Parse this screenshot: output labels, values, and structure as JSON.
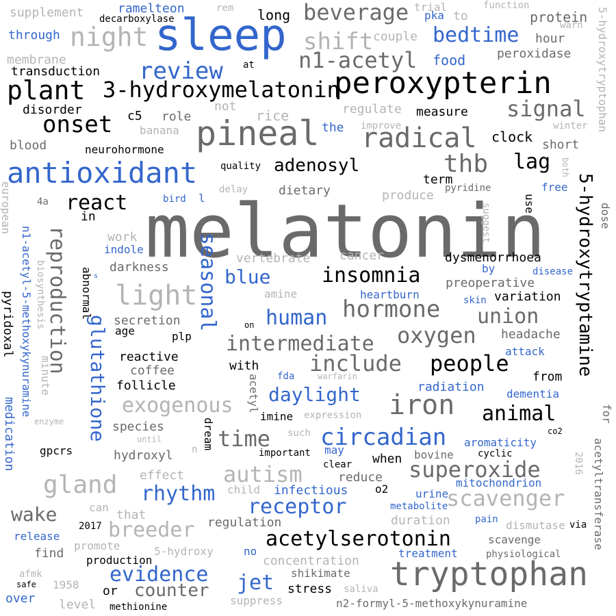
{
  "colors": {
    "black": "#000000",
    "dark_gray": "#6a6a6a",
    "light_gray": "#b4b4b4",
    "blue": "#3366cc",
    "background": "#ffffff"
  },
  "words": [
    "melatonin",
    "sleep",
    "peroxypterin",
    "tryptophan",
    "pineal",
    "antioxidant",
    "plant",
    "3-hydroxymelatonin",
    "radical",
    "review",
    "night",
    "bedtime",
    "beverage",
    "shift",
    "n1-acetyl",
    "onset",
    "signal",
    "thb",
    "adenosyl",
    "lag",
    "iron",
    "insomnia",
    "hormone",
    "seasonal",
    "reproduction",
    "glutathione",
    "5-hydroxytryptamine",
    "circadian",
    "superoxide",
    "acetylserotonin",
    "light",
    "union",
    "oxygen",
    "intermediate",
    "include",
    "people",
    "animal",
    "time",
    "daylight",
    "human",
    "blue",
    "exogenous",
    "autism",
    "gland",
    "rhythm",
    "receptor",
    "scavenger",
    "evidence",
    "counter",
    "jet",
    "breeder",
    "wake",
    "react",
    "supplement",
    "ramelteon",
    "rem",
    "long",
    "trial",
    "pka",
    "to",
    "function",
    "protein",
    "warn",
    "decarboxylase",
    "through",
    "couple",
    "hour",
    "membrane",
    "peroxidase",
    "food",
    "transduction",
    "at",
    "5-hydroxytryptophan",
    "disorder",
    "not",
    "rice",
    "regulate",
    "measure",
    "c5",
    "role",
    "banana",
    "the",
    "improve",
    "clock",
    "winter",
    "blood",
    "neurohormone",
    "short",
    "quality",
    "term",
    "both",
    "delay",
    "dietary",
    "pyridine",
    "free",
    "european",
    "4a",
    "produce",
    "use",
    "bird",
    "l",
    "in",
    "suggest",
    "dose",
    "n1-acetyl-5-methoxykynuramine",
    "work",
    "indole",
    "vertebrate",
    "cancer",
    "dysmenorrhoea",
    "darkness",
    "biosynthesis",
    "abnormal",
    "s",
    "by",
    "disease",
    "preoperative",
    "amine",
    "heartburn",
    "variation",
    "pyridoxal",
    "skin",
    "secretion",
    "age",
    "on",
    "plp",
    "headache",
    "reactive",
    "attack",
    "with",
    "coffee",
    "minute",
    "fda",
    "from",
    "follicle",
    "acetyl",
    "dementia",
    "radiation",
    "medication",
    "for",
    "enzyme",
    "imine",
    "expression",
    "species",
    "warfarin",
    "until",
    "such",
    "co2",
    "aromaticity",
    "acetyltransferase",
    "gpcrs",
    "may",
    "hydroxyl",
    "n",
    "dream",
    "important",
    "cyclic",
    "bovine",
    "when",
    "clear",
    "effect",
    "mitochondrion",
    "2016",
    "reduce",
    "o2",
    "child",
    "infectious",
    "urine",
    "can",
    "that",
    "metabolite",
    "pain",
    "2017",
    "regulation",
    "duration",
    "dismutase",
    "via",
    "release",
    "promote",
    "find",
    "scavenge",
    "5-hydroxy",
    "physiological",
    "treatment",
    "no",
    "production",
    "concentration",
    "afmk",
    "shikimate",
    "safe",
    "1958",
    "stress",
    "saliva",
    "or",
    "over",
    "level",
    "methionine",
    "suppress",
    "n2-formyl-5-methoxykynuramine"
  ]
}
